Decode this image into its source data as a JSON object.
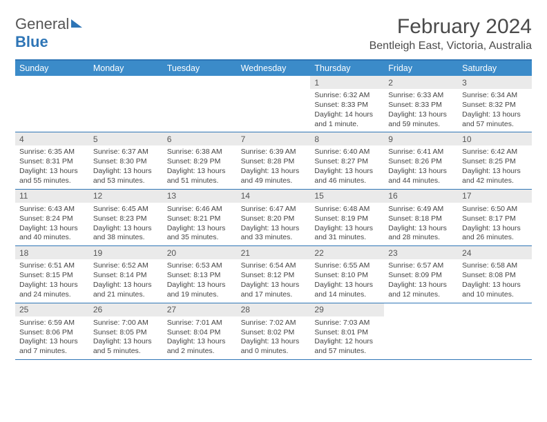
{
  "logo": {
    "line1": "General",
    "line2": "Blue"
  },
  "title": "February 2024",
  "location": "Bentleigh East, Victoria, Australia",
  "colors": {
    "accent": "#3b8bc9",
    "border": "#2e75b6",
    "daynum_bg": "#eaeaea",
    "text": "#444"
  },
  "dow": [
    "Sunday",
    "Monday",
    "Tuesday",
    "Wednesday",
    "Thursday",
    "Friday",
    "Saturday"
  ],
  "weeks": [
    [
      {
        "n": "",
        "lines": [
          "",
          "",
          "",
          ""
        ]
      },
      {
        "n": "",
        "lines": [
          "",
          "",
          "",
          ""
        ]
      },
      {
        "n": "",
        "lines": [
          "",
          "",
          "",
          ""
        ]
      },
      {
        "n": "",
        "lines": [
          "",
          "",
          "",
          ""
        ]
      },
      {
        "n": "1",
        "lines": [
          "Sunrise: 6:32 AM",
          "Sunset: 8:33 PM",
          "Daylight: 14 hours",
          "and 1 minute."
        ]
      },
      {
        "n": "2",
        "lines": [
          "Sunrise: 6:33 AM",
          "Sunset: 8:33 PM",
          "Daylight: 13 hours",
          "and 59 minutes."
        ]
      },
      {
        "n": "3",
        "lines": [
          "Sunrise: 6:34 AM",
          "Sunset: 8:32 PM",
          "Daylight: 13 hours",
          "and 57 minutes."
        ]
      }
    ],
    [
      {
        "n": "4",
        "lines": [
          "Sunrise: 6:35 AM",
          "Sunset: 8:31 PM",
          "Daylight: 13 hours",
          "and 55 minutes."
        ]
      },
      {
        "n": "5",
        "lines": [
          "Sunrise: 6:37 AM",
          "Sunset: 8:30 PM",
          "Daylight: 13 hours",
          "and 53 minutes."
        ]
      },
      {
        "n": "6",
        "lines": [
          "Sunrise: 6:38 AM",
          "Sunset: 8:29 PM",
          "Daylight: 13 hours",
          "and 51 minutes."
        ]
      },
      {
        "n": "7",
        "lines": [
          "Sunrise: 6:39 AM",
          "Sunset: 8:28 PM",
          "Daylight: 13 hours",
          "and 49 minutes."
        ]
      },
      {
        "n": "8",
        "lines": [
          "Sunrise: 6:40 AM",
          "Sunset: 8:27 PM",
          "Daylight: 13 hours",
          "and 46 minutes."
        ]
      },
      {
        "n": "9",
        "lines": [
          "Sunrise: 6:41 AM",
          "Sunset: 8:26 PM",
          "Daylight: 13 hours",
          "and 44 minutes."
        ]
      },
      {
        "n": "10",
        "lines": [
          "Sunrise: 6:42 AM",
          "Sunset: 8:25 PM",
          "Daylight: 13 hours",
          "and 42 minutes."
        ]
      }
    ],
    [
      {
        "n": "11",
        "lines": [
          "Sunrise: 6:43 AM",
          "Sunset: 8:24 PM",
          "Daylight: 13 hours",
          "and 40 minutes."
        ]
      },
      {
        "n": "12",
        "lines": [
          "Sunrise: 6:45 AM",
          "Sunset: 8:23 PM",
          "Daylight: 13 hours",
          "and 38 minutes."
        ]
      },
      {
        "n": "13",
        "lines": [
          "Sunrise: 6:46 AM",
          "Sunset: 8:21 PM",
          "Daylight: 13 hours",
          "and 35 minutes."
        ]
      },
      {
        "n": "14",
        "lines": [
          "Sunrise: 6:47 AM",
          "Sunset: 8:20 PM",
          "Daylight: 13 hours",
          "and 33 minutes."
        ]
      },
      {
        "n": "15",
        "lines": [
          "Sunrise: 6:48 AM",
          "Sunset: 8:19 PM",
          "Daylight: 13 hours",
          "and 31 minutes."
        ]
      },
      {
        "n": "16",
        "lines": [
          "Sunrise: 6:49 AM",
          "Sunset: 8:18 PM",
          "Daylight: 13 hours",
          "and 28 minutes."
        ]
      },
      {
        "n": "17",
        "lines": [
          "Sunrise: 6:50 AM",
          "Sunset: 8:17 PM",
          "Daylight: 13 hours",
          "and 26 minutes."
        ]
      }
    ],
    [
      {
        "n": "18",
        "lines": [
          "Sunrise: 6:51 AM",
          "Sunset: 8:15 PM",
          "Daylight: 13 hours",
          "and 24 minutes."
        ]
      },
      {
        "n": "19",
        "lines": [
          "Sunrise: 6:52 AM",
          "Sunset: 8:14 PM",
          "Daylight: 13 hours",
          "and 21 minutes."
        ]
      },
      {
        "n": "20",
        "lines": [
          "Sunrise: 6:53 AM",
          "Sunset: 8:13 PM",
          "Daylight: 13 hours",
          "and 19 minutes."
        ]
      },
      {
        "n": "21",
        "lines": [
          "Sunrise: 6:54 AM",
          "Sunset: 8:12 PM",
          "Daylight: 13 hours",
          "and 17 minutes."
        ]
      },
      {
        "n": "22",
        "lines": [
          "Sunrise: 6:55 AM",
          "Sunset: 8:10 PM",
          "Daylight: 13 hours",
          "and 14 minutes."
        ]
      },
      {
        "n": "23",
        "lines": [
          "Sunrise: 6:57 AM",
          "Sunset: 8:09 PM",
          "Daylight: 13 hours",
          "and 12 minutes."
        ]
      },
      {
        "n": "24",
        "lines": [
          "Sunrise: 6:58 AM",
          "Sunset: 8:08 PM",
          "Daylight: 13 hours",
          "and 10 minutes."
        ]
      }
    ],
    [
      {
        "n": "25",
        "lines": [
          "Sunrise: 6:59 AM",
          "Sunset: 8:06 PM",
          "Daylight: 13 hours",
          "and 7 minutes."
        ]
      },
      {
        "n": "26",
        "lines": [
          "Sunrise: 7:00 AM",
          "Sunset: 8:05 PM",
          "Daylight: 13 hours",
          "and 5 minutes."
        ]
      },
      {
        "n": "27",
        "lines": [
          "Sunrise: 7:01 AM",
          "Sunset: 8:04 PM",
          "Daylight: 13 hours",
          "and 2 minutes."
        ]
      },
      {
        "n": "28",
        "lines": [
          "Sunrise: 7:02 AM",
          "Sunset: 8:02 PM",
          "Daylight: 13 hours",
          "and 0 minutes."
        ]
      },
      {
        "n": "29",
        "lines": [
          "Sunrise: 7:03 AM",
          "Sunset: 8:01 PM",
          "Daylight: 12 hours",
          "and 57 minutes."
        ]
      },
      {
        "n": "",
        "lines": [
          "",
          "",
          "",
          ""
        ]
      },
      {
        "n": "",
        "lines": [
          "",
          "",
          "",
          ""
        ]
      }
    ]
  ]
}
